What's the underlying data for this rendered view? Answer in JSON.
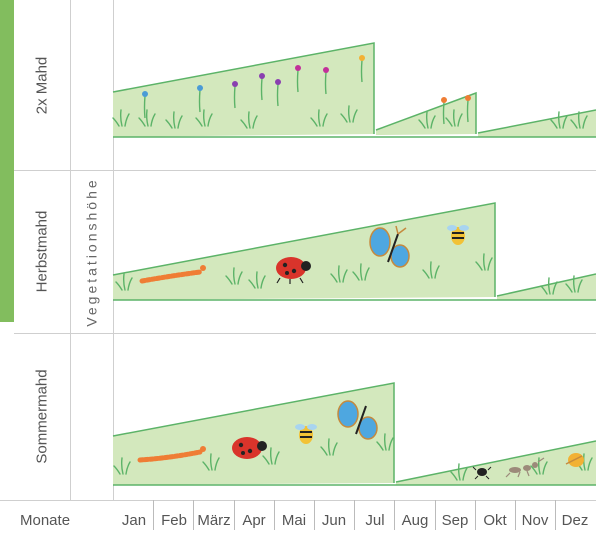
{
  "axis": {
    "vertical_title": "Vegetationshöhe",
    "months_label": "Monate",
    "months": [
      "Jan",
      "Feb",
      "März",
      "Apr",
      "Mai",
      "Jun",
      "Jul",
      "Aug",
      "Sep",
      "Okt",
      "Nov",
      "Dez"
    ]
  },
  "rows": [
    {
      "label": "2x Mahd",
      "highlighted": true
    },
    {
      "label": "Herbstmahd",
      "highlighted": true
    },
    {
      "label": "Sommermahd",
      "highlighted": false
    }
  ],
  "colors": {
    "highlight_bar": "#82bd5e",
    "vegetation_fill": "#d3e8bd",
    "vegetation_stroke": "#5cb368",
    "grid": "#cfcfcf"
  },
  "icons": [
    "flower-icon",
    "grass-icon",
    "caterpillar-icon",
    "ladybug-icon",
    "butterfly-icon",
    "bee-icon",
    "ant-icon",
    "beetle-icon"
  ]
}
